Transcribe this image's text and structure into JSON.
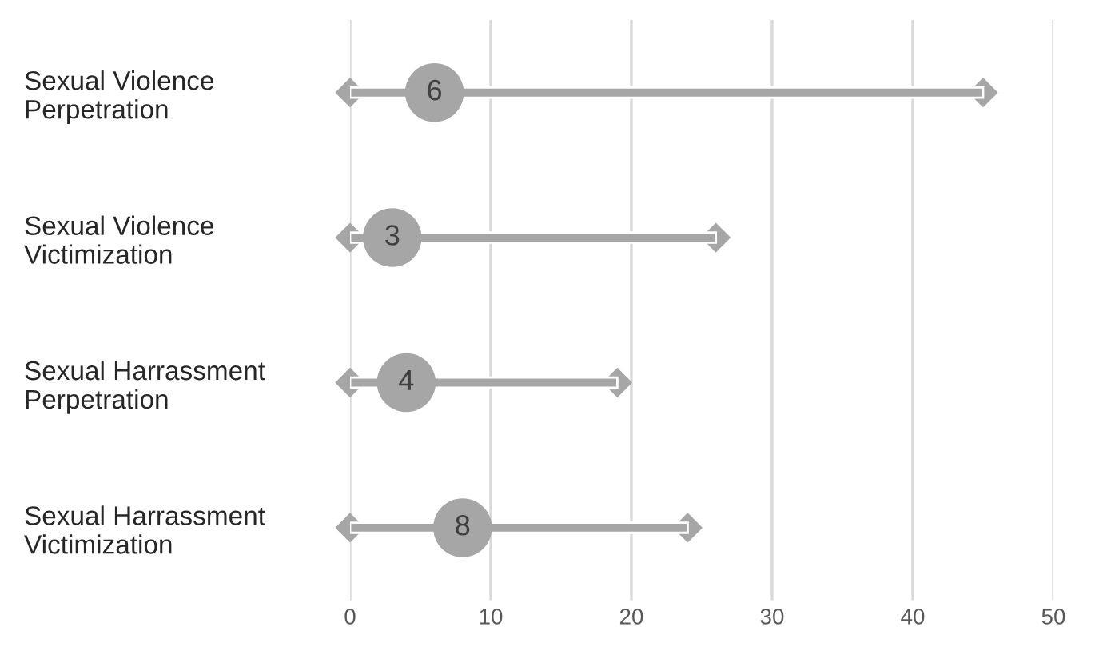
{
  "chart_data": {
    "type": "scatter",
    "orientation": "horizontal",
    "categories": [
      "Sexual Violence\nPerpetration",
      "Sexual Violence\nVictimization",
      "Sexual Harrassment\nPerpetration",
      "Sexual Harrassment\nVictimization"
    ],
    "series": [
      {
        "type": "bar",
        "color": "#a6a6a6",
        "values": [
          45,
          26,
          19,
          24
        ]
      },
      {
        "marker": "diamond",
        "color": "#a6a6a6",
        "values": [
          0,
          0,
          0,
          0
        ]
      },
      {
        "marker": "diamond",
        "color": "#a6a6a6",
        "values": [
          45,
          26,
          19,
          24
        ]
      },
      {
        "marker": "circle",
        "color": "#a6a6a6",
        "values": [
          6,
          3,
          4,
          8
        ],
        "data_labels": true
      }
    ],
    "xlim": [
      0,
      50
    ],
    "xticks": [
      0,
      10,
      20,
      30,
      40,
      50
    ],
    "grid": "x"
  }
}
